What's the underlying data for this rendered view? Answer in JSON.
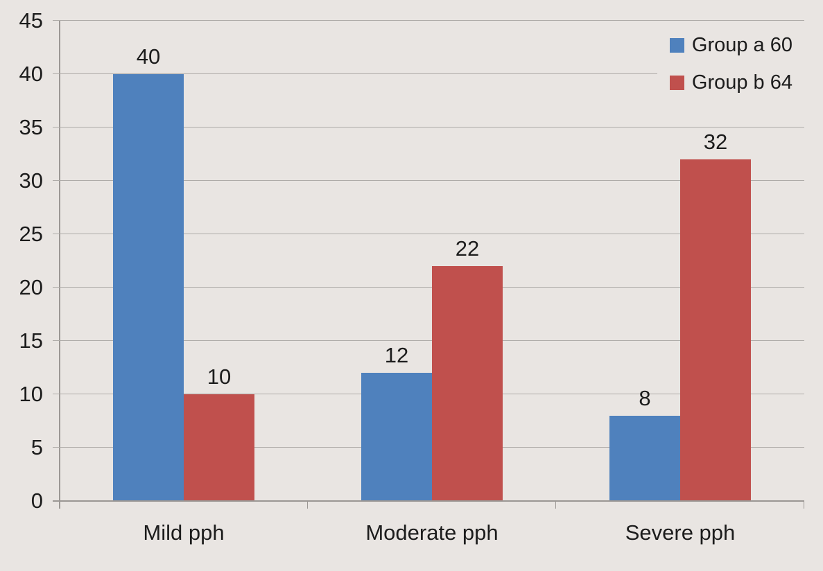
{
  "chart_data": {
    "type": "bar",
    "title": "",
    "categories": [
      "Mild pph",
      "Moderate pph",
      "Severe pph"
    ],
    "series": [
      {
        "name": "Group a 60",
        "color": "#4f81bd",
        "values": [
          40,
          12,
          8
        ]
      },
      {
        "name": "Group b 64",
        "color": "#c0504d",
        "values": [
          10,
          22,
          32
        ]
      }
    ],
    "ylim": [
      0,
      45
    ],
    "yticks": [
      45,
      40,
      35,
      30,
      25,
      20,
      15,
      10,
      5,
      0
    ],
    "grid": true,
    "data_labels": true,
    "legend_position": "top-right"
  },
  "colors": {
    "background": "#e9e5e2",
    "gridline": "#aeaba8",
    "axis": "#9b9794",
    "text": "#1c1c1c"
  }
}
